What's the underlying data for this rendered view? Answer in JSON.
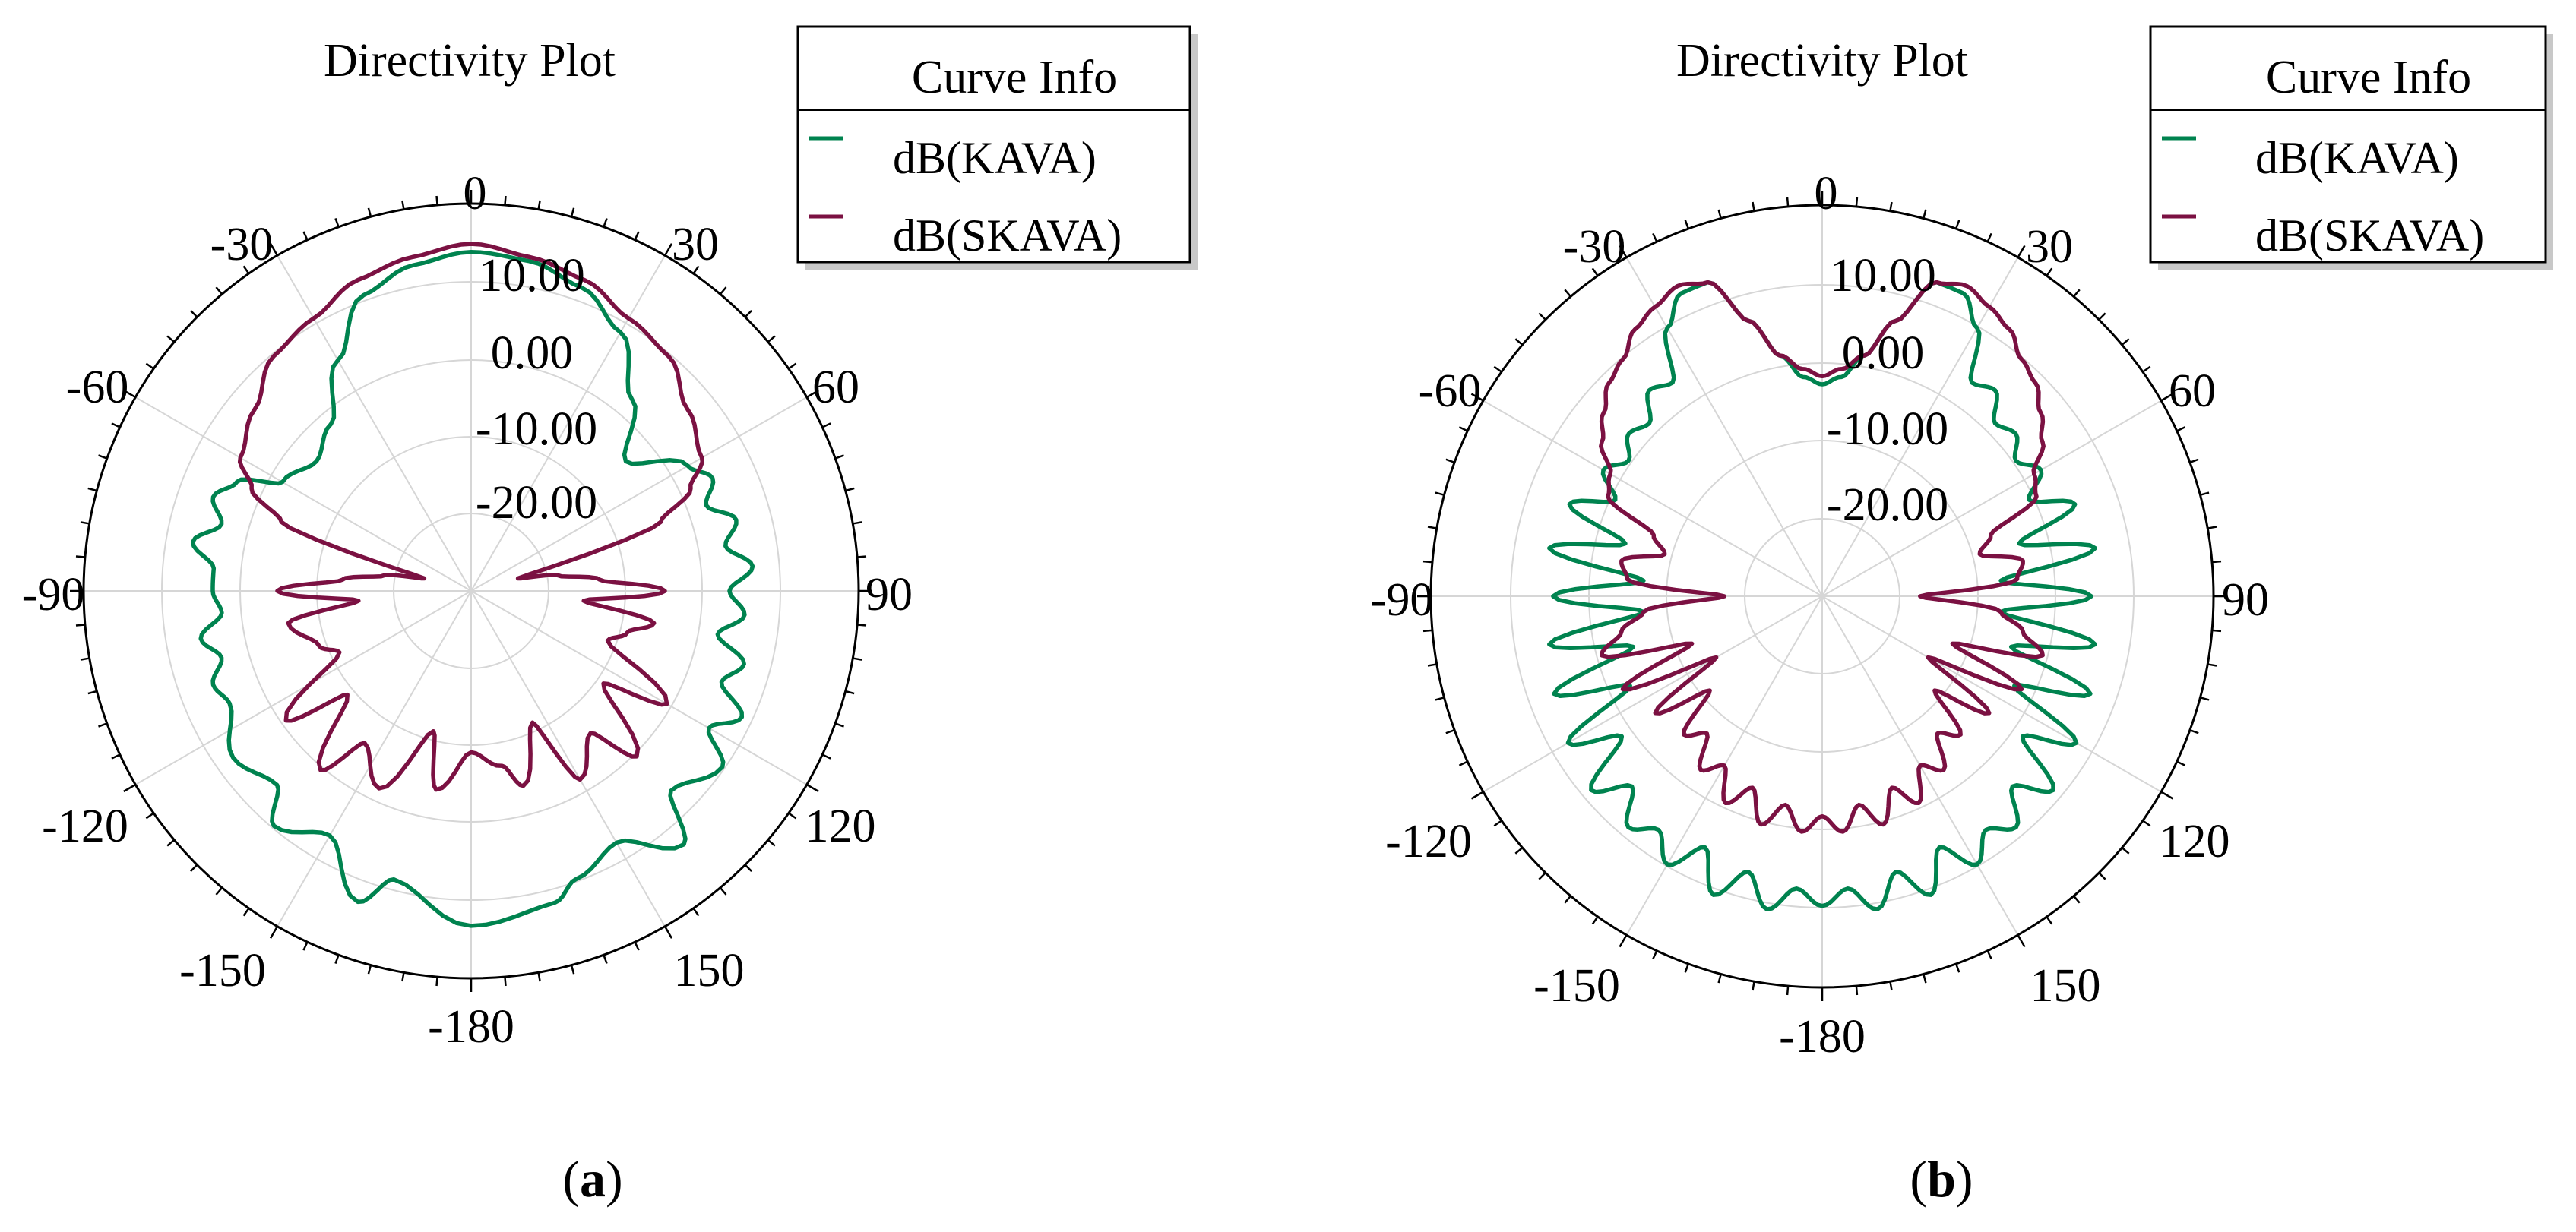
{
  "colors": {
    "kava": "#00834f",
    "skava": "#7b1142"
  },
  "chart_data": [
    {
      "type": "polar-line",
      "panel": "a",
      "title": "Directivity Plot",
      "caption": {
        "open": "(",
        "letter": "a",
        "close": ")"
      },
      "legend": {
        "title": "Curve Info",
        "placement": "top-right"
      },
      "angle_ticks": [
        "0",
        "30",
        "60",
        "90",
        "120",
        "150",
        "-180",
        "-150",
        "-120",
        "-90",
        "-60",
        "-30"
      ],
      "radial_ticks": [
        "10.00",
        "0.00",
        "-10.00",
        "-20.00"
      ],
      "radial_range_db": [
        -30,
        18
      ],
      "grid": true,
      "series": [
        {
          "name": "dB(KAVA)",
          "color_key": "kava",
          "theta_deg": [
            -180,
            -165,
            -160,
            -150,
            -140,
            -135,
            -125,
            -115,
            -110,
            -105,
            -100,
            -95,
            -90,
            -85,
            -80,
            -75,
            -70,
            -65,
            -60,
            -50,
            -40,
            -30,
            -20,
            -10,
            0,
            10,
            20,
            30,
            40,
            50,
            60,
            65,
            70,
            75,
            80,
            85,
            90,
            95,
            100,
            105,
            110,
            115,
            120,
            125,
            135,
            140,
            150,
            160,
            165,
            180
          ],
          "r_db": [
            11.5,
            7,
            11,
            5,
            8,
            4,
            6,
            3,
            4,
            2,
            4,
            1,
            2,
            2,
            5,
            2,
            4,
            2,
            -3,
            -5,
            -3,
            3,
            9,
            11,
            12,
            11.5,
            10,
            7,
            1,
            -5,
            1,
            3,
            1,
            4,
            2,
            5,
            2,
            4,
            1,
            5,
            3,
            7,
            4,
            8,
            5,
            11,
            6,
            8,
            10,
            11.5
          ]
        },
        {
          "name": "dB(SKAVA)",
          "color_key": "skava",
          "theta_deg": [
            -180,
            -170,
            -165,
            -155,
            -145,
            -140,
            -130,
            -125,
            -115,
            -110,
            -100,
            -95,
            -90,
            -85,
            -80,
            -75,
            -70,
            -65,
            -60,
            -50,
            -40,
            -30,
            -20,
            -10,
            0,
            10,
            20,
            30,
            40,
            50,
            60,
            65,
            70,
            75,
            80,
            85,
            90,
            95,
            100,
            105,
            110,
            120,
            125,
            135,
            140,
            150,
            155,
            165,
            170,
            180
          ],
          "r_db": [
            -10,
            -5,
            -12,
            -3,
            -7,
            -1,
            -10,
            -2,
            -12,
            -10,
            -7,
            -16,
            -6,
            -14,
            -19,
            -24,
            -5,
            0,
            3,
            5,
            8,
            9,
            11,
            12,
            13,
            12,
            11,
            9,
            8,
            5,
            3,
            0,
            -5,
            -24,
            -19,
            -14,
            -6,
            -16,
            -7,
            -10,
            -12,
            -2,
            -10,
            -1,
            -7,
            -3,
            -12,
            -5,
            -8,
            -10
          ]
        }
      ]
    },
    {
      "type": "polar-line",
      "panel": "b",
      "title": "Directivity Plot",
      "caption": {
        "open": "(",
        "letter": "b",
        "close": ")"
      },
      "legend": {
        "title": "Curve Info",
        "placement": "top-right"
      },
      "angle_ticks": [
        "0",
        "30",
        "60",
        "90",
        "120",
        "150",
        "-180",
        "-150",
        "-120",
        "-90",
        "-60",
        "-30"
      ],
      "radial_ticks": [
        "10.00",
        "0.00",
        "-10.00",
        "-20.00"
      ],
      "radial_range_db": [
        -30,
        18
      ],
      "grid": true,
      "series": [
        {
          "name": "dB(KAVA)",
          "color_key": "kava",
          "theta_deg": [
            -180,
            -175,
            -170,
            -165,
            -160,
            -155,
            -150,
            -145,
            -140,
            -135,
            -130,
            -125,
            -120,
            -115,
            -110,
            -105,
            -100,
            -95,
            -90,
            -85,
            -80,
            -75,
            -70,
            -65,
            -60,
            -55,
            -50,
            -45,
            -40,
            -35,
            -30,
            -25,
            -20,
            -15,
            -10,
            -5,
            0,
            5,
            10,
            15,
            20,
            25,
            30,
            35,
            40,
            45,
            50,
            55,
            60,
            65,
            70,
            75,
            80,
            85,
            90,
            95,
            100,
            105,
            110,
            115,
            120,
            125,
            130,
            135,
            140,
            145,
            150,
            155,
            160,
            165,
            170,
            175,
            180
          ],
          "r_db": [
            8,
            6,
            9,
            5,
            9,
            4,
            8,
            5,
            7,
            3,
            7,
            0,
            6,
            -4,
            5,
            -6,
            4,
            -8,
            3,
            -8,
            4,
            -5,
            3,
            -2,
            1,
            -1,
            1,
            0,
            3,
            2,
            8,
            11,
            11,
            5,
            0,
            -3,
            -4,
            -3,
            0,
            5,
            11,
            11,
            8,
            2,
            3,
            0,
            1,
            -1,
            1,
            -2,
            3,
            -5,
            4,
            -8,
            3,
            -8,
            4,
            -6,
            5,
            -4,
            6,
            0,
            7,
            3,
            7,
            5,
            8,
            4,
            9,
            5,
            9,
            6,
            8
          ]
        },
        {
          "name": "dB(SKAVA)",
          "color_key": "skava",
          "theta_deg": [
            -180,
            -175,
            -170,
            -165,
            -160,
            -155,
            -150,
            -145,
            -140,
            -135,
            -130,
            -125,
            -120,
            -115,
            -110,
            -105,
            -100,
            -95,
            -90,
            -85,
            -80,
            -75,
            -70,
            -65,
            -60,
            -55,
            -50,
            -45,
            -40,
            -35,
            -30,
            -25,
            -20,
            -15,
            -10,
            -5,
            0,
            5,
            10,
            15,
            20,
            25,
            30,
            35,
            40,
            45,
            50,
            55,
            60,
            65,
            70,
            75,
            80,
            85,
            90,
            95,
            100,
            105,
            110,
            115,
            120,
            125,
            130,
            135,
            140,
            145,
            150,
            155,
            160,
            165,
            170,
            175,
            180
          ],
          "r_db": [
            -3,
            -1,
            -4,
            -1,
            -5,
            -2,
            -6,
            -4,
            -8,
            -6,
            -12,
            -5,
            -15,
            -3,
            -13,
            -2,
            -5,
            -8,
            -18,
            -6,
            -5,
            -10,
            -8,
            -1,
            0,
            3,
            5,
            7,
            8,
            10,
            11,
            12,
            11,
            5,
            0,
            -2,
            -3,
            -2,
            0,
            5,
            11,
            12,
            11,
            10,
            8,
            7,
            5,
            3,
            0,
            -1,
            -8,
            -10,
            -5,
            -6,
            -18,
            -8,
            -5,
            -2,
            -13,
            -3,
            -15,
            -5,
            -12,
            -6,
            -8,
            -4,
            -6,
            -2,
            -5,
            -1,
            -4,
            -1,
            -3
          ]
        }
      ]
    }
  ]
}
